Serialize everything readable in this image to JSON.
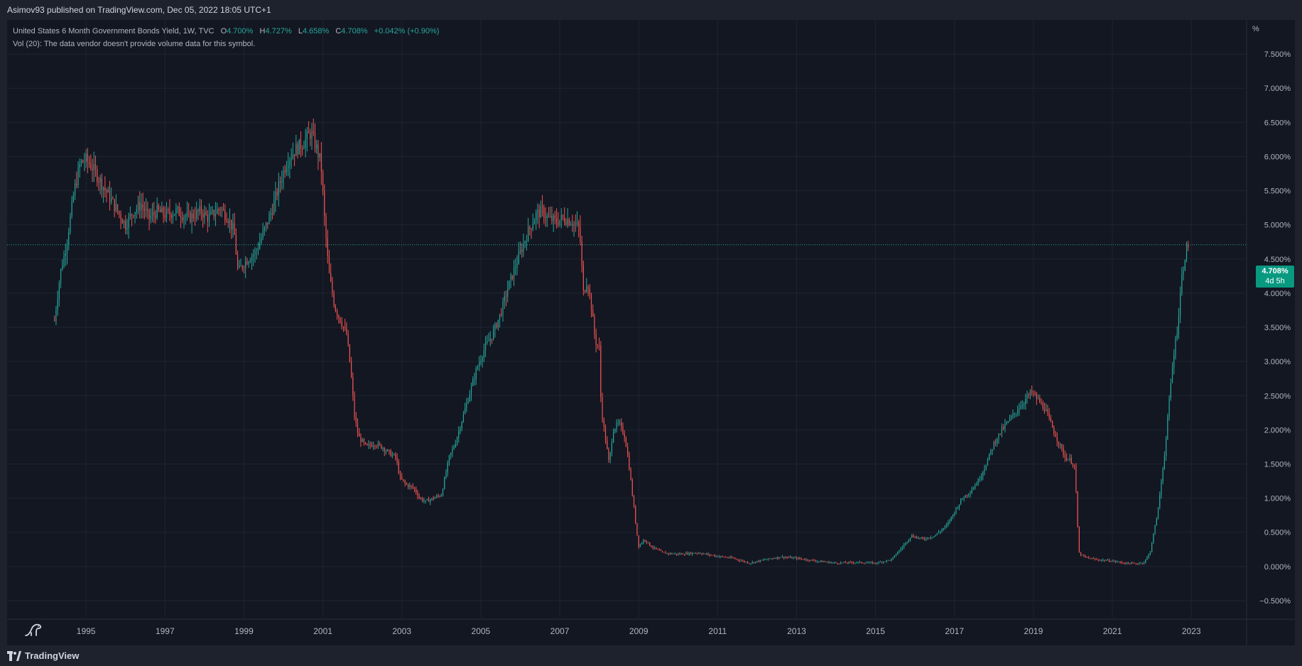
{
  "published_by": "Asimov93 published on TradingView.com, Dec 05, 2022 18:05 UTC+1",
  "legend": {
    "symbol_line": "United States 6 Month Government Bonds Yield, 1W, TVC",
    "open_label": "O",
    "open_value": "4.700%",
    "high_label": "H",
    "high_value": "4.727%",
    "low_label": "L",
    "low_value": "4.658%",
    "close_label": "C",
    "close_value": "4.708%",
    "change": "+0.042% (+0.90%)",
    "volume_line": "Vol (20): The data vendor doesn't provide volume data for this symbol."
  },
  "price_tag": {
    "price": "4.708%",
    "countdown": "4d 5h"
  },
  "brand": "TradingView",
  "colors": {
    "up": "#26a69a",
    "down": "#ef5350",
    "background": "#131722",
    "grid": "#1f2433",
    "text": "#b2b5be",
    "price_tag": "#089981"
  },
  "chart_data": {
    "type": "candlestick",
    "title": "United States 6 Month Government Bonds Yield, 1W, TVC",
    "ylabel": "%",
    "y_unit": "%",
    "ylim": [
      -0.75,
      8.0
    ],
    "xlim": [
      1993.0,
      2024.4
    ],
    "y_ticks": [
      "7.500%",
      "7.000%",
      "6.500%",
      "6.000%",
      "5.500%",
      "5.000%",
      "4.500%",
      "4.000%",
      "3.500%",
      "3.000%",
      "2.500%",
      "2.000%",
      "1.500%",
      "1.000%",
      "0.500%",
      "0.000%",
      "−0.500%"
    ],
    "y_tick_values": [
      7.5,
      7.0,
      6.5,
      6.0,
      5.5,
      5.0,
      4.5,
      4.0,
      3.5,
      3.0,
      2.5,
      2.0,
      1.5,
      1.0,
      0.5,
      0.0,
      -0.5
    ],
    "x_ticks": [
      "1995",
      "1997",
      "1999",
      "2001",
      "2003",
      "2005",
      "2007",
      "2009",
      "2011",
      "2013",
      "2015",
      "2017",
      "2019",
      "2021",
      "2023"
    ],
    "x_tick_values": [
      1995,
      1997,
      1999,
      2001,
      2003,
      2005,
      2007,
      2009,
      2011,
      2013,
      2015,
      2017,
      2019,
      2021,
      2023
    ],
    "last_price": 4.708,
    "grid": true,
    "series": [
      {
        "name": "United States 6 Month Government Bonds Yield",
        "x": [
          1994.2,
          1994.35,
          1994.5,
          1994.7,
          1994.85,
          1995.0,
          1995.15,
          1995.4,
          1995.6,
          1995.8,
          1996.0,
          1996.2,
          1996.4,
          1996.6,
          1996.8,
          1997.0,
          1997.3,
          1997.6,
          1997.9,
          1998.1,
          1998.4,
          1998.6,
          1998.75,
          1998.85,
          1998.95,
          1999.1,
          1999.3,
          1999.5,
          1999.7,
          1999.9,
          2000.1,
          2000.3,
          2000.5,
          2000.7,
          2000.85,
          2000.95,
          2001.05,
          2001.15,
          2001.3,
          2001.45,
          2001.6,
          2001.7,
          2001.8,
          2001.9,
          2002.1,
          2002.3,
          2002.5,
          2002.7,
          2002.85,
          2002.95,
          2003.1,
          2003.3,
          2003.45,
          2003.6,
          2003.8,
          2004.0,
          2004.2,
          2004.35,
          2004.5,
          2004.7,
          2004.9,
          2005.1,
          2005.3,
          2005.5,
          2005.7,
          2005.85,
          2006.0,
          2006.2,
          2006.4,
          2006.55,
          2006.7,
          2006.9,
          2007.1,
          2007.3,
          2007.5,
          2007.6,
          2007.7,
          2007.8,
          2007.9,
          2008.0,
          2008.05,
          2008.15,
          2008.25,
          2008.35,
          2008.5,
          2008.65,
          2008.75,
          2008.85,
          2008.95,
          2009.0,
          2009.15,
          2009.3,
          2009.6,
          2010.0,
          2010.5,
          2011.0,
          2011.4,
          2011.8,
          2012.2,
          2012.6,
          2013.0,
          2013.5,
          2014.0,
          2014.5,
          2015.0,
          2015.4,
          2015.7,
          2015.9,
          2016.2,
          2016.5,
          2016.8,
          2017.0,
          2017.2,
          2017.4,
          2017.6,
          2017.8,
          2018.0,
          2018.2,
          2018.4,
          2018.6,
          2018.8,
          2018.95,
          2019.1,
          2019.3,
          2019.5,
          2019.65,
          2019.8,
          2019.95,
          2020.05,
          2020.15,
          2020.25,
          2020.4,
          2020.6,
          2020.8,
          2021.0,
          2021.3,
          2021.6,
          2021.8,
          2021.95,
          2022.05,
          2022.15,
          2022.25,
          2022.35,
          2022.45,
          2022.55,
          2022.65,
          2022.75,
          2022.85,
          2022.92
        ],
        "close": [
          3.6,
          4.3,
          4.7,
          5.5,
          5.9,
          5.95,
          5.85,
          5.6,
          5.4,
          5.2,
          5.0,
          5.2,
          5.3,
          5.1,
          5.2,
          5.15,
          5.2,
          5.1,
          5.2,
          5.1,
          5.25,
          5.1,
          4.9,
          4.3,
          4.4,
          4.5,
          4.6,
          4.9,
          5.2,
          5.6,
          5.95,
          6.1,
          6.2,
          6.35,
          6.1,
          5.9,
          5.0,
          4.3,
          3.8,
          3.6,
          3.4,
          2.9,
          2.2,
          1.9,
          1.75,
          1.8,
          1.75,
          1.65,
          1.6,
          1.3,
          1.2,
          1.15,
          1.0,
          0.95,
          1.0,
          1.05,
          1.6,
          1.8,
          2.1,
          2.5,
          2.9,
          3.2,
          3.4,
          3.7,
          4.1,
          4.35,
          4.6,
          4.9,
          5.15,
          5.2,
          5.1,
          5.05,
          5.1,
          5.05,
          4.95,
          4.0,
          4.2,
          3.8,
          3.3,
          3.2,
          2.3,
          1.9,
          1.5,
          2.0,
          2.1,
          1.9,
          1.5,
          1.0,
          0.5,
          0.3,
          0.4,
          0.3,
          0.2,
          0.18,
          0.2,
          0.15,
          0.12,
          0.05,
          0.1,
          0.14,
          0.12,
          0.08,
          0.05,
          0.06,
          0.05,
          0.1,
          0.3,
          0.45,
          0.4,
          0.45,
          0.6,
          0.8,
          1.0,
          1.1,
          1.25,
          1.5,
          1.8,
          2.0,
          2.15,
          2.3,
          2.45,
          2.55,
          2.45,
          2.3,
          2.0,
          1.8,
          1.6,
          1.55,
          1.45,
          0.2,
          0.15,
          0.12,
          0.1,
          0.09,
          0.08,
          0.05,
          0.04,
          0.06,
          0.2,
          0.5,
          0.8,
          1.3,
          1.8,
          2.5,
          3.1,
          3.5,
          4.2,
          4.6,
          4.708
        ]
      }
    ]
  }
}
